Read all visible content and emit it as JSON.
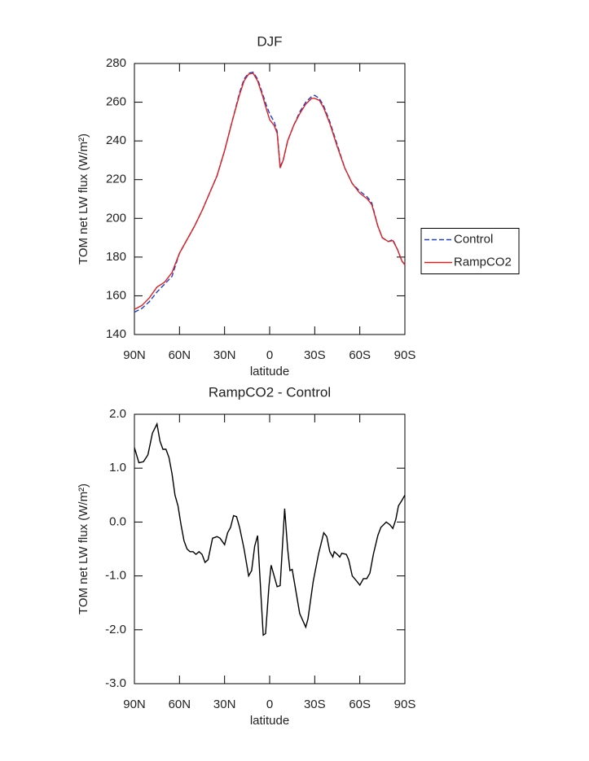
{
  "chart_data": [
    {
      "type": "line",
      "title": "DJF",
      "xlabel": "latitude",
      "ylabel": "TOM net LW flux (W/m²)",
      "xlim": [
        90,
        -90
      ],
      "ylim": [
        140,
        280
      ],
      "xticks": [
        {
          "value": 90,
          "label": "90N"
        },
        {
          "value": 60,
          "label": "60N"
        },
        {
          "value": 30,
          "label": "30N"
        },
        0,
        {
          "value": -30,
          "label": "30S"
        },
        {
          "value": -60,
          "label": "60S"
        },
        {
          "value": -90,
          "label": "90S"
        }
      ],
      "yticks": [
        140,
        160,
        180,
        200,
        220,
        240,
        260,
        280
      ],
      "legend": "right",
      "x": [
        90,
        85,
        80,
        75,
        70,
        65,
        60,
        55,
        50,
        45,
        40,
        35,
        30,
        25,
        20,
        17,
        14,
        11,
        8,
        5,
        2,
        0,
        -3,
        -5,
        -7,
        -9,
        -12,
        -16,
        -20,
        -24,
        -28,
        -30,
        -33,
        -36,
        -40,
        -45,
        -50,
        -55,
        -60,
        -65,
        -68,
        -72,
        -75,
        -79,
        -82,
        -85,
        -88,
        -90
      ],
      "series": [
        {
          "name": "Control",
          "color": "#1f3fcf",
          "style": "dashed",
          "values": [
            151.5,
            153.5,
            157,
            162,
            166,
            170,
            182,
            189,
            196,
            204,
            213,
            222,
            235,
            250,
            265,
            272,
            275,
            275.5,
            272,
            265,
            258,
            254,
            250,
            245,
            227,
            230,
            240,
            248,
            255,
            260,
            263,
            263.5,
            262,
            258,
            250,
            238,
            226,
            218,
            214,
            211,
            208,
            196,
            190,
            188,
            189,
            184,
            178,
            176
          ]
        },
        {
          "name": "RampCO2",
          "color": "#e02020",
          "style": "solid",
          "values": [
            153,
            155,
            159,
            164.5,
            167,
            172,
            182,
            189,
            196,
            204,
            213,
            222,
            235,
            250,
            264,
            271,
            274.5,
            275,
            271,
            264,
            256,
            251,
            248,
            244,
            226,
            230,
            240,
            248,
            254,
            259,
            262,
            262,
            261,
            257,
            249,
            237,
            226,
            218,
            213,
            210,
            207,
            196,
            190,
            188,
            188.5,
            184,
            178,
            176
          ]
        }
      ]
    },
    {
      "type": "line",
      "title": "RampCO2 - Control",
      "xlabel": "latitude",
      "ylabel": "TOM net LW flux (W/m²)",
      "xlim": [
        90,
        -90
      ],
      "ylim": [
        -3,
        2
      ],
      "xticks": [
        {
          "value": 90,
          "label": "90N"
        },
        {
          "value": 60,
          "label": "60N"
        },
        {
          "value": 30,
          "label": "30N"
        },
        0,
        {
          "value": -30,
          "label": "30S"
        },
        {
          "value": -60,
          "label": "60S"
        },
        {
          "value": -90,
          "label": "90S"
        }
      ],
      "yticks": [
        {
          "value": -3,
          "label": "-3.0"
        },
        {
          "value": -2,
          "label": "-2.0"
        },
        {
          "value": -1,
          "label": "-1.0"
        },
        {
          "value": 0,
          "label": "0.0"
        },
        {
          "value": 1,
          "label": "1.0"
        },
        {
          "value": 2,
          "label": "2.0"
        }
      ],
      "color": "#000000",
      "x": [
        90,
        87,
        84,
        81,
        78,
        75,
        73,
        71,
        69,
        67,
        65,
        63,
        61,
        59,
        57,
        55,
        53,
        51,
        49,
        47,
        45,
        43,
        41,
        38,
        35,
        33,
        30,
        28,
        26,
        24,
        22,
        20,
        17,
        14,
        12,
        10,
        8,
        4.3,
        2.7,
        0.5,
        -1,
        -5,
        -7,
        -10,
        -12,
        -13.5,
        -15,
        -20,
        -24,
        -25.5,
        -29,
        -32.5,
        -36,
        -38,
        -40,
        -42,
        -43,
        -45,
        -46.7,
        -48,
        -51,
        -52.6,
        -55,
        -58,
        -60,
        -62.4,
        -64.6,
        -66.7,
        -69,
        -72,
        -74,
        -77.6,
        -80,
        -82,
        -84,
        -85.7,
        -88,
        -90
      ],
      "values": [
        1.38,
        1.1,
        1.12,
        1.25,
        1.65,
        1.82,
        1.5,
        1.35,
        1.35,
        1.2,
        0.9,
        0.5,
        0.3,
        -0.05,
        -0.35,
        -0.5,
        -0.55,
        -0.55,
        -0.6,
        -0.55,
        -0.6,
        -0.75,
        -0.7,
        -0.3,
        -0.27,
        -0.3,
        -0.42,
        -0.2,
        -0.1,
        0.12,
        0.1,
        -0.1,
        -0.5,
        -1.0,
        -0.9,
        -0.45,
        -0.25,
        -2.1,
        -2.07,
        -1.2,
        -0.8,
        -1.2,
        -1.18,
        0.25,
        -0.5,
        -0.9,
        -0.88,
        -1.7,
        -1.95,
        -1.8,
        -1.1,
        -0.6,
        -0.2,
        -0.27,
        -0.55,
        -0.65,
        -0.55,
        -0.6,
        -0.65,
        -0.58,
        -0.6,
        -0.7,
        -1.0,
        -1.1,
        -1.17,
        -1.05,
        -1.05,
        -0.95,
        -0.6,
        -0.25,
        -0.1,
        0.0,
        -0.05,
        -0.12,
        0.05,
        0.3,
        0.4,
        0.5
      ]
    }
  ]
}
